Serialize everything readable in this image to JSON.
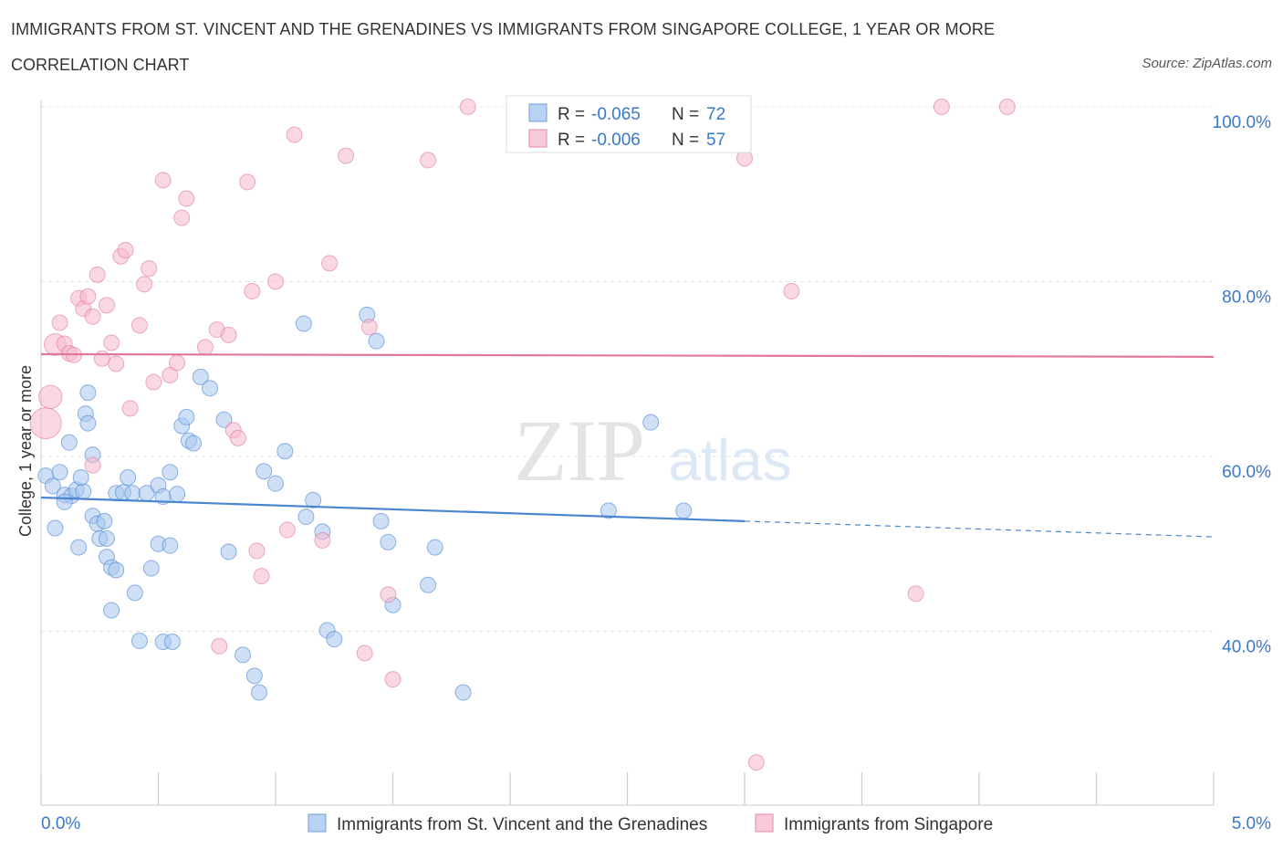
{
  "title": "IMMIGRANTS FROM ST. VINCENT AND THE GRENADINES VS IMMIGRANTS FROM SINGAPORE COLLEGE, 1 YEAR OR MORE",
  "subtitle": "CORRELATION CHART",
  "source": "Source: ZipAtlas.com",
  "watermark": {
    "zip": "ZIP",
    "atlas": "atlas"
  },
  "chart_data": {
    "type": "scatter",
    "ylabel": "College, 1 year or more",
    "x_tick_labels": [
      "0.0%",
      "5.0%"
    ],
    "y_tick_labels": [
      "100.0%",
      "80.0%",
      "60.0%",
      "40.0%"
    ],
    "y_ticks": [
      100,
      80,
      60,
      40
    ],
    "xlim": [
      0,
      5
    ],
    "ylim": [
      20,
      101
    ],
    "grid": true,
    "legend_position": "top-center",
    "stats": [
      {
        "r_label": "R =",
        "r_value": "-0.065",
        "n_label": "N =",
        "n_value": "72"
      },
      {
        "r_label": "R =",
        "r_value": "-0.006",
        "n_label": "N =",
        "n_value": "57"
      }
    ],
    "series": [
      {
        "name": "Immigrants from St. Vincent and the Grenadines",
        "color": "#4a86d0",
        "fill": "#a8c6ee",
        "trend": {
          "x0": 0.0,
          "y0": 55.3,
          "x1": 3.0,
          "y1": 52.6,
          "dash_x1": 5.0,
          "dash_y1": 50.8
        },
        "points": [
          [
            0.02,
            57.8,
            1
          ],
          [
            0.05,
            56.6,
            1
          ],
          [
            0.08,
            58.2,
            1
          ],
          [
            0.12,
            61.6,
            1
          ],
          [
            0.06,
            51.8,
            1
          ],
          [
            0.1,
            55.6,
            1
          ],
          [
            0.13,
            55.5,
            1
          ],
          [
            0.15,
            56.2,
            1
          ],
          [
            0.18,
            56.0,
            1
          ],
          [
            0.1,
            54.8,
            1
          ],
          [
            0.17,
            57.6,
            1
          ],
          [
            0.2,
            67.3,
            1
          ],
          [
            0.19,
            64.9,
            1
          ],
          [
            0.2,
            63.8,
            1
          ],
          [
            0.22,
            60.2,
            1
          ],
          [
            0.22,
            53.2,
            1
          ],
          [
            0.24,
            52.3,
            1
          ],
          [
            0.27,
            52.6,
            1
          ],
          [
            0.16,
            49.6,
            1
          ],
          [
            0.25,
            50.6,
            1
          ],
          [
            0.28,
            50.6,
            1
          ],
          [
            0.28,
            48.5,
            1
          ],
          [
            0.3,
            47.3,
            1
          ],
          [
            0.32,
            47.0,
            1
          ],
          [
            0.32,
            55.8,
            1
          ],
          [
            0.35,
            55.9,
            1
          ],
          [
            0.37,
            57.6,
            1
          ],
          [
            0.39,
            55.8,
            1
          ],
          [
            0.45,
            55.8,
            1
          ],
          [
            0.5,
            56.7,
            1
          ],
          [
            0.52,
            55.4,
            1
          ],
          [
            0.55,
            58.2,
            1
          ],
          [
            0.58,
            55.7,
            1
          ],
          [
            0.47,
            47.2,
            1
          ],
          [
            0.5,
            50.0,
            1
          ],
          [
            0.55,
            49.8,
            1
          ],
          [
            0.6,
            63.5,
            1
          ],
          [
            0.62,
            64.5,
            1
          ],
          [
            0.63,
            61.8,
            1
          ],
          [
            0.65,
            61.5,
            1
          ],
          [
            0.4,
            44.4,
            1
          ],
          [
            0.42,
            38.9,
            1
          ],
          [
            0.52,
            38.8,
            1
          ],
          [
            0.56,
            38.8,
            1
          ],
          [
            0.68,
            69.1,
            1
          ],
          [
            0.72,
            67.8,
            1
          ],
          [
            0.78,
            64.2,
            1
          ],
          [
            0.8,
            49.1,
            1
          ],
          [
            0.86,
            37.3,
            1
          ],
          [
            0.91,
            34.9,
            1
          ],
          [
            0.95,
            58.3,
            1
          ],
          [
            1.0,
            56.9,
            1
          ],
          [
            1.04,
            60.6,
            1
          ],
          [
            1.12,
            75.2,
            1
          ],
          [
            1.13,
            53.1,
            1
          ],
          [
            1.16,
            55.0,
            1
          ],
          [
            1.2,
            51.4,
            1
          ],
          [
            1.22,
            40.1,
            1
          ],
          [
            1.25,
            39.1,
            1
          ],
          [
            1.39,
            76.2,
            1
          ],
          [
            1.43,
            73.2,
            1
          ],
          [
            1.45,
            52.6,
            1
          ],
          [
            1.48,
            50.2,
            1
          ],
          [
            1.5,
            43.0,
            1
          ],
          [
            1.65,
            45.3,
            1
          ],
          [
            1.68,
            49.6,
            1
          ],
          [
            1.8,
            33.0,
            1
          ],
          [
            0.93,
            33.0,
            1
          ],
          [
            2.42,
            53.8,
            1
          ],
          [
            2.6,
            63.9,
            1
          ],
          [
            2.74,
            53.8,
            1
          ],
          [
            0.3,
            42.4,
            1
          ]
        ]
      },
      {
        "name": "Immigrants from Singapore",
        "color": "#e0789a",
        "fill": "#f5b8cc",
        "trend": {
          "x0": 0.0,
          "y0": 71.7,
          "x1": 5.0,
          "y1": 71.4
        },
        "points": [
          [
            0.02,
            63.8,
            2
          ],
          [
            0.04,
            66.8,
            1.5
          ],
          [
            0.06,
            72.8,
            1.4
          ],
          [
            0.08,
            75.3,
            1
          ],
          [
            0.1,
            72.9,
            1
          ],
          [
            0.12,
            71.8,
            1
          ],
          [
            0.14,
            71.6,
            1
          ],
          [
            0.16,
            78.1,
            1
          ],
          [
            0.18,
            76.9,
            1
          ],
          [
            0.2,
            78.3,
            1
          ],
          [
            0.22,
            76.0,
            1
          ],
          [
            0.24,
            80.8,
            1
          ],
          [
            0.26,
            71.2,
            1
          ],
          [
            0.28,
            77.3,
            1
          ],
          [
            0.3,
            73.0,
            1
          ],
          [
            0.32,
            70.6,
            1
          ],
          [
            0.34,
            82.9,
            1
          ],
          [
            0.36,
            83.6,
            1
          ],
          [
            0.38,
            65.5,
            1
          ],
          [
            0.42,
            75.0,
            1
          ],
          [
            0.44,
            79.7,
            1
          ],
          [
            0.46,
            81.5,
            1
          ],
          [
            0.48,
            68.5,
            1
          ],
          [
            0.55,
            69.3,
            1
          ],
          [
            0.58,
            70.7,
            1
          ],
          [
            0.52,
            91.6,
            1
          ],
          [
            0.6,
            87.3,
            1
          ],
          [
            0.62,
            89.5,
            1
          ],
          [
            0.7,
            72.5,
            1
          ],
          [
            0.75,
            74.5,
            1
          ],
          [
            0.8,
            73.9,
            1
          ],
          [
            0.82,
            63.0,
            1
          ],
          [
            0.84,
            62.1,
            1
          ],
          [
            0.88,
            91.4,
            1
          ],
          [
            0.9,
            78.9,
            1
          ],
          [
            0.92,
            49.2,
            1
          ],
          [
            0.94,
            46.3,
            1
          ],
          [
            1.0,
            80.0,
            1
          ],
          [
            1.05,
            51.6,
            1
          ],
          [
            1.08,
            96.8,
            1
          ],
          [
            1.2,
            50.4,
            1
          ],
          [
            1.23,
            82.1,
            1
          ],
          [
            1.3,
            94.4,
            1
          ],
          [
            1.38,
            37.5,
            1
          ],
          [
            1.4,
            74.8,
            1
          ],
          [
            1.48,
            44.2,
            1
          ],
          [
            1.5,
            34.5,
            1
          ],
          [
            1.65,
            93.9,
            1
          ],
          [
            1.82,
            100.0,
            1
          ],
          [
            0.76,
            38.3,
            1
          ],
          [
            3.0,
            94.1,
            1
          ],
          [
            3.2,
            78.9,
            1
          ],
          [
            3.73,
            44.3,
            1
          ],
          [
            3.84,
            100.0,
            1
          ],
          [
            4.12,
            100.0,
            1
          ],
          [
            0.22,
            59.0,
            1
          ],
          [
            3.05,
            25.0,
            1
          ]
        ]
      }
    ]
  }
}
